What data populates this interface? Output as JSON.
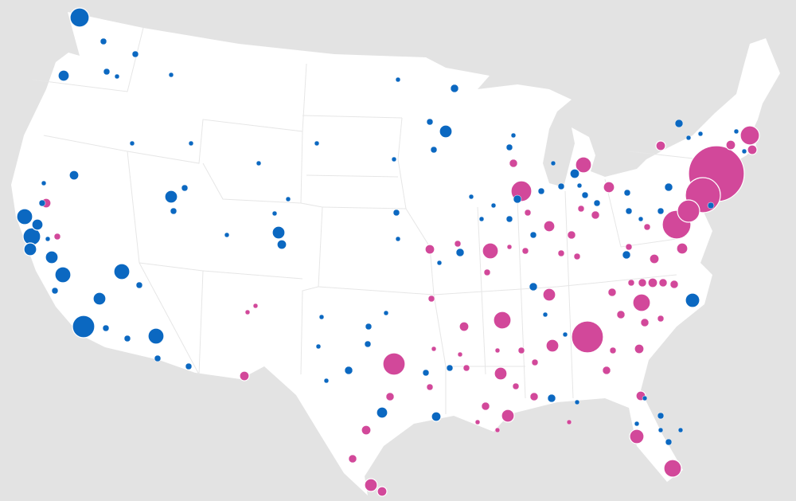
{
  "map": {
    "type": "bubble-map",
    "background": "#e3e3e3",
    "land": "#ffffff",
    "series": [
      {
        "color": "#0b68c1"
      },
      {
        "color": "#d2489a"
      }
    ]
  }
}
